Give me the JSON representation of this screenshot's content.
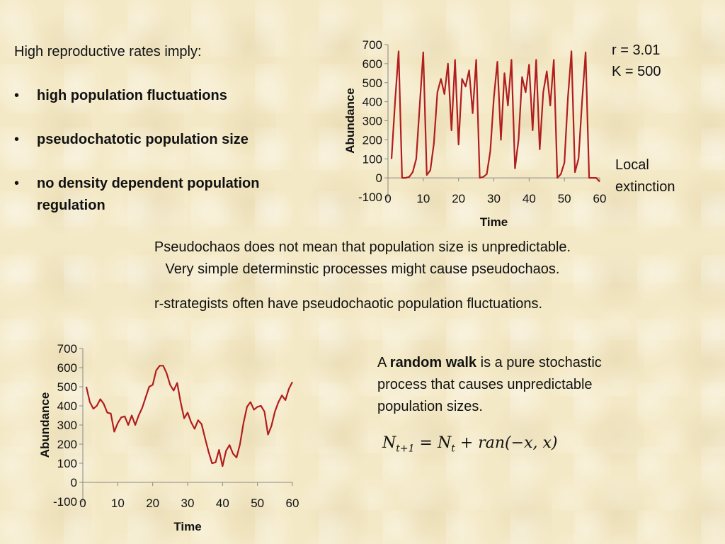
{
  "intro": "High reproductive rates imply:",
  "bullets": [
    "high population fluctuations",
    "pseudochatotic population size",
    "no density dependent population regulation"
  ],
  "bullet_glyph": "•",
  "params": {
    "r": "r = 3.01",
    "k": "K = 500"
  },
  "extinction_label": "Local extinction",
  "middle": {
    "line1": "Pseudochaos does not mean that population size is unpredictable.",
    "line2": "Very simple determinstic processes might cause pseudochaos.",
    "line3": "r-strategists often have pseudochaotic population fluctuations."
  },
  "random_walk": {
    "prefix": "A ",
    "bold": "random walk",
    "suffix": " is a pure stochastic process that causes unpredictable population sizes."
  },
  "formula": {
    "lhs": "N",
    "lhs_sub": "t+1",
    "eq": " = ",
    "rhs": "N",
    "rhs_sub": "t",
    "rest": " + ran(−x, x)"
  },
  "colors": {
    "line": "#b01e1e",
    "axis": "#888888",
    "text": "#111111"
  },
  "chart_data": [
    {
      "type": "line",
      "xlabel": "Time",
      "ylabel": "Abundance",
      "xlim": [
        0,
        60
      ],
      "ylim": [
        -100,
        700
      ],
      "xticks": [
        0,
        10,
        20,
        30,
        40,
        50,
        60
      ],
      "yticks": [
        -100,
        0,
        100,
        200,
        300,
        400,
        500,
        600,
        700
      ],
      "grid": false,
      "series": [
        {
          "x": [
            1,
            2,
            3,
            4,
            5,
            6,
            7,
            8,
            9,
            10,
            11,
            12,
            13,
            14,
            15,
            16,
            17,
            18,
            19,
            20,
            21,
            22,
            23,
            24,
            25,
            26,
            27,
            28,
            29,
            30,
            31,
            32,
            33,
            34,
            35,
            36,
            37,
            38,
            39,
            40,
            41,
            42,
            43,
            44,
            45,
            46,
            47,
            48,
            49,
            50,
            51,
            52,
            53,
            54,
            55,
            56,
            57,
            58,
            59,
            60
          ],
          "y": [
            100,
            400,
            665,
            0,
            0,
            5,
            30,
            100,
            380,
            660,
            15,
            40,
            180,
            450,
            520,
            440,
            600,
            250,
            620,
            175,
            520,
            480,
            565,
            340,
            620,
            0,
            5,
            20,
            140,
            420,
            610,
            200,
            550,
            380,
            620,
            50,
            200,
            530,
            450,
            595,
            250,
            620,
            150,
            450,
            560,
            380,
            620,
            0,
            20,
            80,
            420,
            665,
            30,
            100,
            400,
            660,
            0,
            0,
            0,
            -20
          ]
        }
      ]
    },
    {
      "type": "line",
      "xlabel": "Time",
      "ylabel": "Abundance",
      "xlim": [
        0,
        60
      ],
      "ylim": [
        -100,
        700
      ],
      "xticks": [
        0,
        10,
        20,
        30,
        40,
        50,
        60
      ],
      "yticks": [
        -100,
        0,
        100,
        200,
        300,
        400,
        500,
        600,
        700
      ],
      "grid": false,
      "series": [
        {
          "x": [
            1,
            2,
            3,
            4,
            5,
            6,
            7,
            8,
            9,
            10,
            11,
            12,
            13,
            14,
            15,
            16,
            17,
            18,
            19,
            20,
            21,
            22,
            23,
            24,
            25,
            26,
            27,
            28,
            29,
            30,
            31,
            32,
            33,
            34,
            35,
            36,
            37,
            38,
            39,
            40,
            41,
            42,
            43,
            44,
            45,
            46,
            47,
            48,
            49,
            50,
            51,
            52,
            53,
            54,
            55,
            56,
            57,
            58,
            59,
            60
          ],
          "y": [
            500,
            420,
            385,
            400,
            435,
            410,
            365,
            360,
            265,
            310,
            340,
            345,
            300,
            350,
            300,
            350,
            390,
            445,
            500,
            510,
            585,
            610,
            610,
            570,
            510,
            480,
            520,
            420,
            335,
            365,
            315,
            280,
            325,
            305,
            230,
            160,
            100,
            105,
            170,
            85,
            165,
            195,
            150,
            130,
            200,
            310,
            395,
            420,
            380,
            395,
            400,
            370,
            250,
            295,
            370,
            420,
            455,
            430,
            490,
            525
          ]
        }
      ]
    }
  ]
}
